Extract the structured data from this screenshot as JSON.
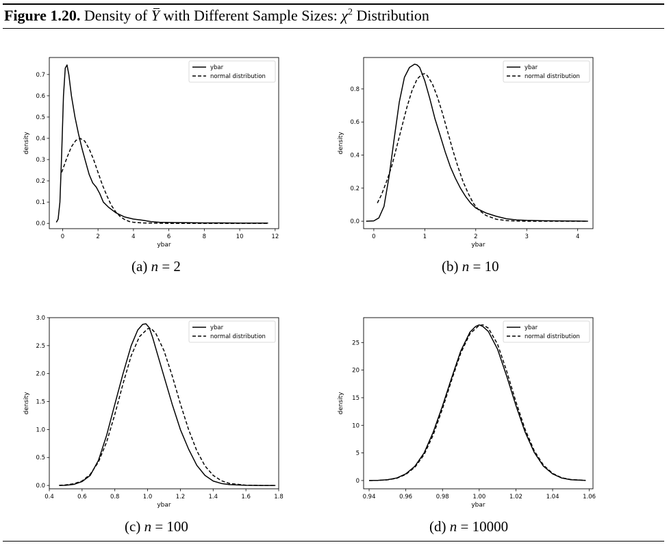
{
  "figure": {
    "label": "Figure 1.20.",
    "title_pre": "Density of ",
    "title_sym": "Y",
    "title_mid": " with Different Sample Sizes: ",
    "title_chi": "χ",
    "title_chi_exp": "2",
    "title_post": " Distribution"
  },
  "chart_data": [
    {
      "type": "line",
      "caption_prefix": "(a) ",
      "caption_var": "n",
      "caption_value": " = 2",
      "xlabel": "ybar",
      "ylabel": "density",
      "xlim": [
        -0.75,
        12.2
      ],
      "ylim": [
        -0.025,
        0.78
      ],
      "xticks": [
        0,
        2,
        4,
        6,
        8,
        10,
        12
      ],
      "xtick_labels": [
        "0",
        "2",
        "4",
        "6",
        "8",
        "10",
        "12"
      ],
      "yticks": [
        0.0,
        0.1,
        0.2,
        0.3,
        0.4,
        0.5,
        0.6,
        0.7
      ],
      "ytick_labels": [
        "0.0",
        "0.1",
        "0.2",
        "0.3",
        "0.4",
        "0.5",
        "0.6",
        "0.7"
      ],
      "legend": "top-right",
      "grid": false,
      "series": [
        {
          "name": "ybar",
          "style": "solid",
          "x": [
            -0.35,
            -0.25,
            -0.15,
            -0.05,
            0.05,
            0.15,
            0.25,
            0.35,
            0.5,
            0.7,
            0.9,
            1.1,
            1.3,
            1.5,
            1.7,
            1.9,
            2.1,
            2.3,
            2.6,
            3.0,
            3.5,
            4.0,
            4.5,
            5.0,
            5.5,
            6.0,
            7.0,
            8.0,
            9.0,
            10.0,
            11.0,
            11.6
          ],
          "y": [
            0.005,
            0.02,
            0.1,
            0.33,
            0.6,
            0.73,
            0.745,
            0.7,
            0.6,
            0.5,
            0.42,
            0.35,
            0.29,
            0.23,
            0.19,
            0.17,
            0.14,
            0.1,
            0.075,
            0.05,
            0.03,
            0.02,
            0.015,
            0.008,
            0.005,
            0.004,
            0.003,
            0.002,
            0.002,
            0.001,
            0.001,
            0.001
          ]
        },
        {
          "name": "normal distribution",
          "style": "dashed",
          "x": [
            -0.05,
            0.25,
            0.5,
            0.75,
            1.0,
            1.25,
            1.5,
            1.75,
            2.0,
            2.25,
            2.5,
            2.75,
            3.0,
            3.25,
            3.5,
            3.75,
            4.0,
            4.5,
            5.0,
            6.0,
            7.0,
            8.0,
            9.0,
            10.0,
            11.0,
            11.6
          ],
          "y": [
            0.24,
            0.31,
            0.36,
            0.39,
            0.399,
            0.387,
            0.35,
            0.3,
            0.24,
            0.18,
            0.13,
            0.085,
            0.054,
            0.032,
            0.018,
            0.009,
            0.005,
            0.002,
            0.001,
            0.0,
            0.0,
            0.0,
            0.0,
            0.0,
            0.0,
            0.0
          ]
        }
      ]
    },
    {
      "type": "line",
      "caption_prefix": "(b) ",
      "caption_var": "n",
      "caption_value": " = 10",
      "xlabel": "ybar",
      "ylabel": "density",
      "xlim": [
        -0.2,
        4.3
      ],
      "ylim": [
        -0.045,
        0.99
      ],
      "xticks": [
        0,
        1,
        2,
        3,
        4
      ],
      "xtick_labels": [
        "0",
        "1",
        "2",
        "3",
        "4"
      ],
      "yticks": [
        0.0,
        0.2,
        0.4,
        0.6,
        0.8
      ],
      "ytick_labels": [
        "0.0",
        "0.2",
        "0.4",
        "0.6",
        "0.8"
      ],
      "legend": "top-right",
      "grid": false,
      "series": [
        {
          "name": "ybar",
          "style": "solid",
          "x": [
            -0.15,
            0.0,
            0.1,
            0.2,
            0.3,
            0.4,
            0.5,
            0.6,
            0.7,
            0.8,
            0.85,
            0.9,
            1.0,
            1.1,
            1.2,
            1.3,
            1.4,
            1.5,
            1.6,
            1.7,
            1.8,
            1.9,
            2.0,
            2.1,
            2.2,
            2.4,
            2.6,
            2.8,
            3.0,
            3.3,
            3.6,
            4.0,
            4.2
          ],
          "y": [
            0.0,
            0.002,
            0.02,
            0.09,
            0.27,
            0.5,
            0.72,
            0.87,
            0.93,
            0.95,
            0.945,
            0.93,
            0.85,
            0.74,
            0.62,
            0.52,
            0.42,
            0.33,
            0.26,
            0.2,
            0.15,
            0.11,
            0.08,
            0.065,
            0.05,
            0.03,
            0.015,
            0.008,
            0.005,
            0.003,
            0.002,
            0.001,
            0.0
          ]
        },
        {
          "name": "normal distribution",
          "style": "dashed",
          "x": [
            0.07,
            0.15,
            0.25,
            0.35,
            0.45,
            0.55,
            0.65,
            0.75,
            0.85,
            0.95,
            1.0,
            1.05,
            1.15,
            1.25,
            1.35,
            1.45,
            1.55,
            1.65,
            1.75,
            1.85,
            1.95,
            2.05,
            2.2,
            2.4,
            2.6,
            2.8,
            3.0,
            3.3,
            3.6,
            4.0,
            4.2
          ],
          "y": [
            0.11,
            0.16,
            0.24,
            0.33,
            0.45,
            0.57,
            0.69,
            0.79,
            0.86,
            0.89,
            0.892,
            0.88,
            0.83,
            0.75,
            0.65,
            0.54,
            0.43,
            0.33,
            0.24,
            0.17,
            0.11,
            0.07,
            0.035,
            0.012,
            0.004,
            0.001,
            0.0,
            0.0,
            0.0,
            0.0,
            0.0
          ]
        }
      ]
    },
    {
      "type": "line",
      "caption_prefix": "(c) ",
      "caption_var": "n",
      "caption_value": " = 100",
      "xlabel": "ybar",
      "ylabel": "density",
      "xlim": [
        0.4,
        1.8
      ],
      "ylim": [
        -0.06,
        3.0
      ],
      "xticks": [
        0.4,
        0.6,
        0.8,
        1.0,
        1.2,
        1.4,
        1.6,
        1.8
      ],
      "xtick_labels": [
        "0.4",
        "0.6",
        "0.8",
        "1.0",
        "1.2",
        "1.4",
        "1.6",
        "1.8"
      ],
      "yticks": [
        0.0,
        0.5,
        1.0,
        1.5,
        2.0,
        2.5,
        3.0
      ],
      "ytick_labels": [
        "0.0",
        "0.5",
        "1.0",
        "1.5",
        "2.0",
        "2.5",
        "3.0"
      ],
      "legend": "top-right",
      "grid": false,
      "series": [
        {
          "name": "ybar",
          "style": "solid",
          "x": [
            0.46,
            0.5,
            0.55,
            0.6,
            0.65,
            0.7,
            0.75,
            0.8,
            0.85,
            0.9,
            0.94,
            0.97,
            0.99,
            1.01,
            1.03,
            1.06,
            1.1,
            1.15,
            1.2,
            1.25,
            1.3,
            1.35,
            1.4,
            1.45,
            1.5,
            1.6,
            1.7,
            1.78
          ],
          "y": [
            0.0,
            0.003,
            0.02,
            0.07,
            0.18,
            0.45,
            0.9,
            1.45,
            2.0,
            2.5,
            2.78,
            2.88,
            2.89,
            2.82,
            2.65,
            2.35,
            1.95,
            1.45,
            1.0,
            0.65,
            0.36,
            0.18,
            0.08,
            0.035,
            0.015,
            0.003,
            0.0,
            0.0
          ]
        },
        {
          "name": "normal distribution",
          "style": "dashed",
          "x": [
            0.46,
            0.5,
            0.55,
            0.6,
            0.65,
            0.7,
            0.75,
            0.8,
            0.85,
            0.9,
            0.95,
            1.0,
            1.02,
            1.05,
            1.1,
            1.15,
            1.2,
            1.25,
            1.3,
            1.35,
            1.4,
            1.45,
            1.5,
            1.6,
            1.7,
            1.78
          ],
          "y": [
            0.003,
            0.01,
            0.03,
            0.08,
            0.2,
            0.42,
            0.78,
            1.27,
            1.82,
            2.32,
            2.66,
            2.8,
            2.81,
            2.72,
            2.41,
            1.96,
            1.46,
            1.0,
            0.62,
            0.35,
            0.18,
            0.085,
            0.036,
            0.005,
            0.0,
            0.0
          ]
        }
      ]
    },
    {
      "type": "line",
      "caption_prefix": "(d) ",
      "caption_var": "n",
      "caption_value": " = 10000",
      "xlabel": "ybar",
      "ylabel": "density",
      "xlim": [
        0.937,
        1.062
      ],
      "ylim": [
        -1.5,
        29.5
      ],
      "xticks": [
        0.94,
        0.96,
        0.98,
        1.0,
        1.02,
        1.04,
        1.06
      ],
      "xtick_labels": [
        "0.94",
        "0.96",
        "0.98",
        "1.00",
        "1.02",
        "1.04",
        "1.06"
      ],
      "yticks": [
        0,
        5,
        10,
        15,
        20,
        25
      ],
      "ytick_labels": [
        "0",
        "5",
        "10",
        "15",
        "20",
        "25"
      ],
      "legend": "top-right",
      "grid": false,
      "series": [
        {
          "name": "ybar",
          "style": "solid",
          "x": [
            0.94,
            0.945,
            0.95,
            0.955,
            0.96,
            0.965,
            0.97,
            0.975,
            0.98,
            0.985,
            0.99,
            0.995,
            0.998,
            1.0,
            1.002,
            1.005,
            1.01,
            1.015,
            1.02,
            1.025,
            1.03,
            1.035,
            1.04,
            1.045,
            1.05,
            1.058
          ],
          "y": [
            0.0,
            0.04,
            0.15,
            0.45,
            1.2,
            2.6,
            5.0,
            8.8,
            13.5,
            18.6,
            23.5,
            26.9,
            27.9,
            28.2,
            27.9,
            27.0,
            23.8,
            18.9,
            13.6,
            8.8,
            5.1,
            2.6,
            1.2,
            0.45,
            0.15,
            0.03
          ]
        },
        {
          "name": "normal distribution",
          "style": "dashed",
          "x": [
            0.94,
            0.945,
            0.95,
            0.955,
            0.96,
            0.965,
            0.97,
            0.975,
            0.98,
            0.985,
            0.99,
            0.995,
            1.0,
            1.002,
            1.005,
            1.01,
            1.015,
            1.02,
            1.025,
            1.03,
            1.035,
            1.04,
            1.045,
            1.05,
            1.058
          ],
          "y": [
            0.0,
            0.03,
            0.12,
            0.4,
            1.1,
            2.4,
            4.7,
            8.3,
            13.0,
            18.2,
            23.1,
            26.6,
            28.1,
            28.2,
            27.6,
            24.7,
            19.8,
            14.3,
            9.3,
            5.4,
            2.8,
            1.3,
            0.5,
            0.17,
            0.03
          ]
        }
      ]
    }
  ]
}
